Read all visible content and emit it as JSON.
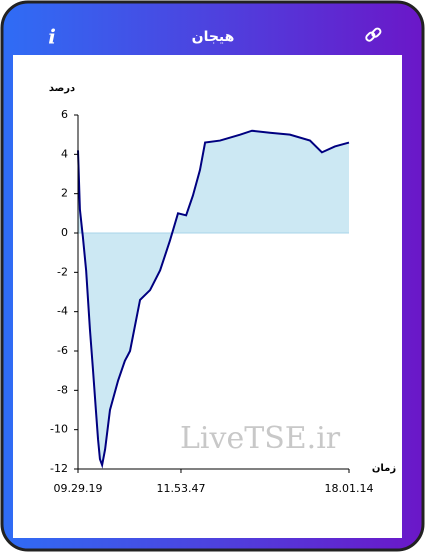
{
  "header": {
    "title": "هیجان",
    "info_icon": "i"
  },
  "watermark": "LiveTSE.ir",
  "chart_data": {
    "type": "area-line",
    "ylabel": "درصد",
    "xlabel": "زمان",
    "x": [
      0,
      0.7,
      1.8,
      3,
      4.4,
      5.5,
      6.6,
      7.4,
      8.1,
      8.9,
      10,
      11.8,
      14.8,
      17.3,
      19.2,
      22.9,
      26.6,
      30.3,
      33.9,
      36.9,
      39.9,
      42.4,
      45,
      46.9,
      52.4,
      59.8,
      64.2,
      70.8,
      78.2,
      85.6,
      90,
      94.8,
      100
    ],
    "series": [
      {
        "color": "#000080",
        "fill": "#cce8f3",
        "values": [
          4.2,
          1.2,
          -0.2,
          -1.9,
          -4.9,
          -6.9,
          -9,
          -10.5,
          -11.5,
          -11.8,
          -11,
          -9,
          -7.5,
          -6.5,
          -6,
          -3.4,
          -2.9,
          -1.9,
          -0.4,
          1,
          0.9,
          1.9,
          3.2,
          4.6,
          4.7,
          5,
          5.2,
          5.1,
          5,
          4.7,
          4.1,
          4.4,
          4.6
        ]
      }
    ],
    "xlim": [
      0,
      100
    ],
    "xticks": [
      {
        "value": 0,
        "label": "09.29.19"
      },
      {
        "value": 38,
        "label": "11.53.47"
      },
      {
        "value": 100,
        "label": "18.01.14"
      }
    ],
    "ylim": [
      -12,
      6
    ],
    "yticks": [
      -12,
      -10,
      -8,
      -6,
      -4,
      -2,
      0,
      2,
      4,
      6
    ]
  }
}
